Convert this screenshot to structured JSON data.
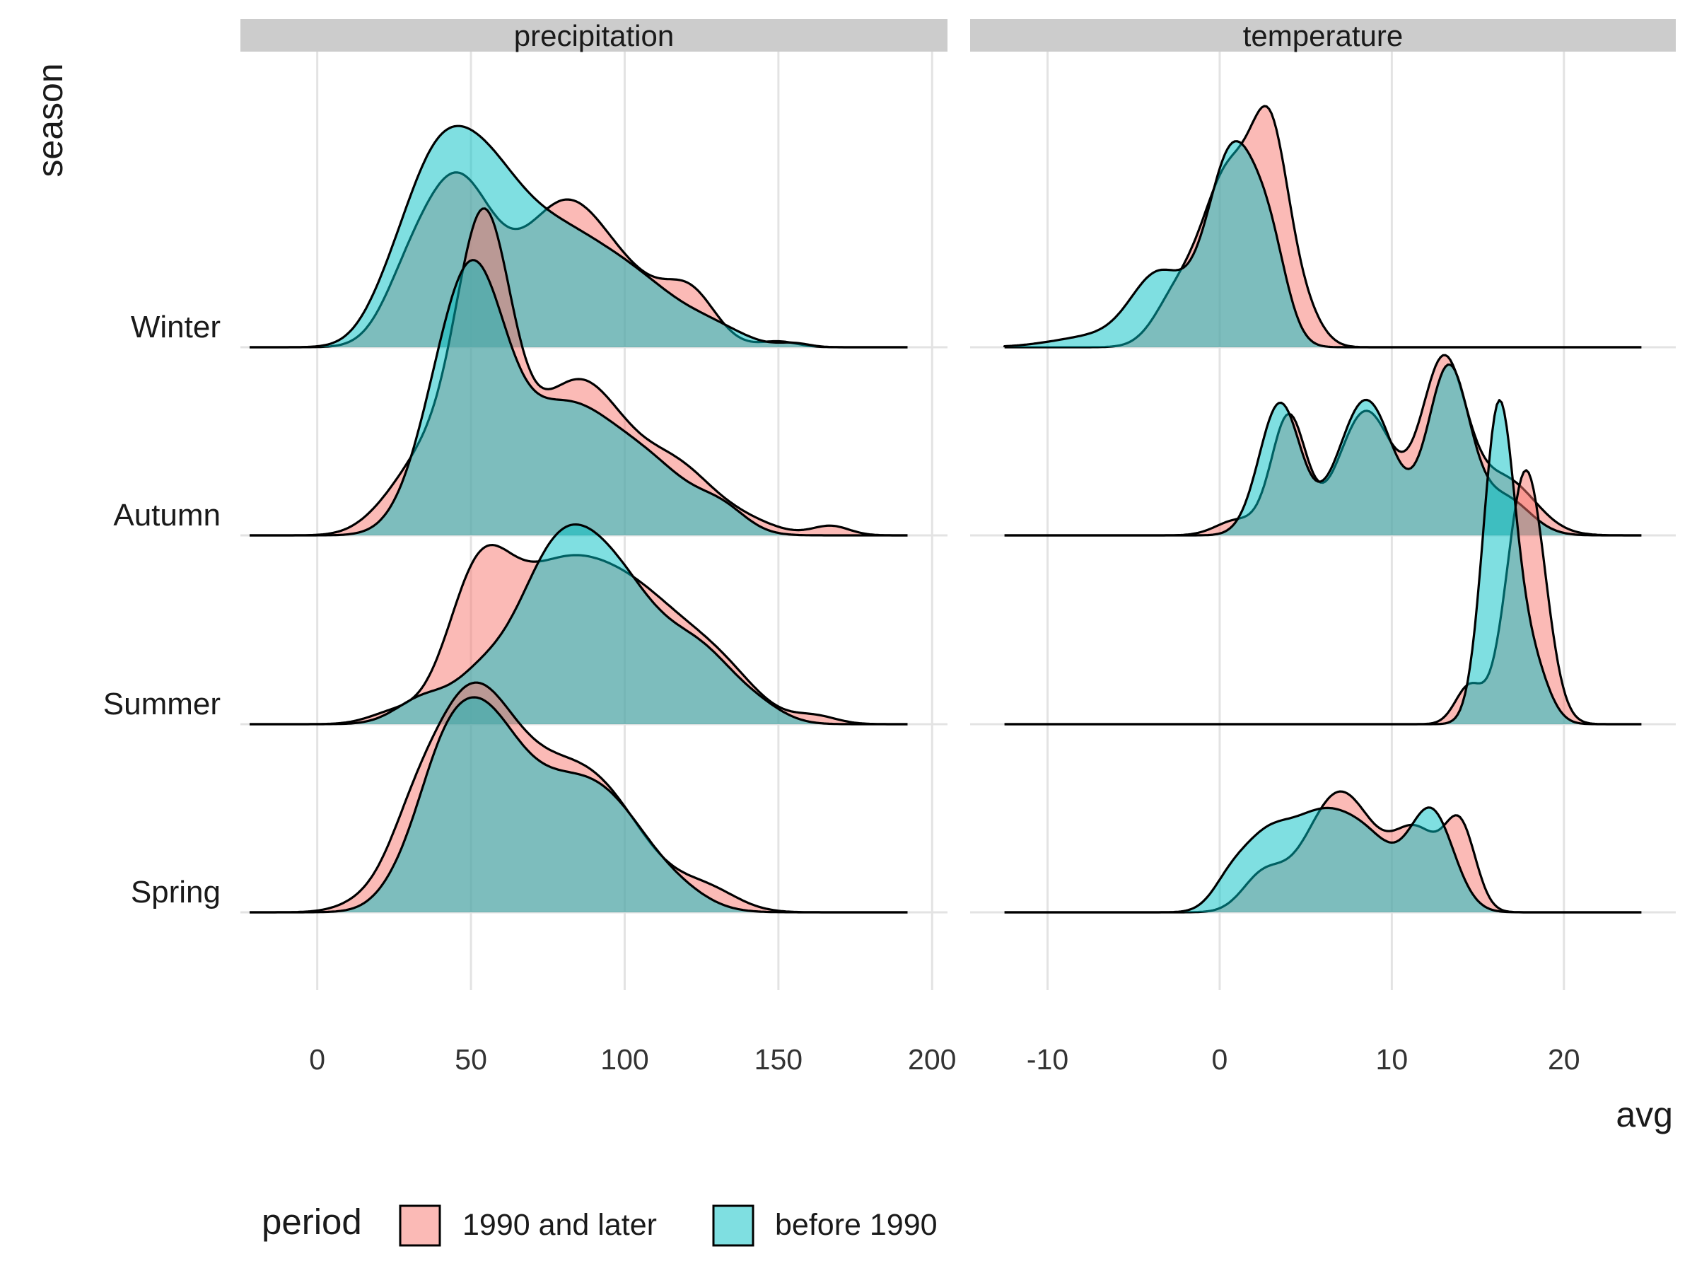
{
  "chart_data": {
    "type": "ridgeline",
    "xlabel": "avg",
    "ylabel": "season",
    "legend": {
      "title": "period",
      "position": "bottom-left",
      "entries": [
        {
          "label": "1990 and later",
          "color": "#F8766D"
        },
        {
          "label": "before 1990",
          "color": "#00BFC4"
        }
      ]
    },
    "categories": [
      "Spring",
      "Summer",
      "Autumn",
      "Winter"
    ],
    "grid": true,
    "panels": [
      {
        "title": "precipitation",
        "xlim": [
          -25,
          205
        ],
        "xticks": [
          0,
          50,
          100,
          150,
          200
        ],
        "tick_labels": [
          "0",
          "50",
          "100",
          "150",
          "200"
        ],
        "ridges": [
          {
            "category": "Spring",
            "series": "1990 and later",
            "range": [
              -22,
              192
            ],
            "peaks": [
              [
                15,
                0.035,
                8
              ],
              [
                30,
                0.18,
                8
              ],
              [
                48,
                0.94,
                14
              ],
              [
                75,
                0.6,
                20
              ],
              [
                95,
                0.3,
                15
              ],
              [
                127,
                0.105,
                10
              ]
            ]
          },
          {
            "category": "Spring",
            "series": "before 1990",
            "range": [
              -22,
              192
            ],
            "peaks": [
              [
                25,
                0.05,
                7
              ],
              [
                38,
                0.2,
                8
              ],
              [
                50,
                0.88,
                13
              ],
              [
                78,
                0.58,
                19
              ],
              [
                98,
                0.26,
                14
              ],
              [
                120,
                0.04,
                9
              ]
            ]
          },
          {
            "category": "Summer",
            "series": "1990 and later",
            "range": [
              -22,
              192
            ],
            "peaks": [
              [
                25,
                0.06,
                8
              ],
              [
                52,
                0.62,
                10
              ],
              [
                75,
                0.68,
                17
              ],
              [
                105,
                0.6,
                18
              ],
              [
                132,
                0.18,
                12
              ],
              [
                162,
                0.04,
                7
              ]
            ]
          },
          {
            "category": "Summer",
            "series": "before 1990",
            "range": [
              -22,
              192
            ],
            "peaks": [
              [
                35,
                0.14,
                9
              ],
              [
                52,
                0.15,
                8
              ],
              [
                78,
                0.88,
                14
              ],
              [
                100,
                0.55,
                13
              ],
              [
                125,
                0.35,
                12
              ],
              [
                145,
                0.05,
                8
              ]
            ]
          },
          {
            "category": "Autumn",
            "series": "1990 and later",
            "range": [
              -22,
              192
            ],
            "peaks": [
              [
                20,
                0.05,
                8
              ],
              [
                35,
                0.38,
                10
              ],
              [
                54,
                1.55,
                9
              ],
              [
                85,
                0.82,
                16
              ],
              [
                118,
                0.3,
                12
              ],
              [
                140,
                0.06,
                10
              ],
              [
                167,
                0.05,
                6
              ]
            ]
          },
          {
            "category": "Autumn",
            "series": "before 1990",
            "range": [
              -22,
              192
            ],
            "peaks": [
              [
                40,
                0.48,
                10
              ],
              [
                52,
                1.05,
                10
              ],
              [
                80,
                0.67,
                17
              ],
              [
                110,
                0.28,
                14
              ],
              [
                132,
                0.1,
                8
              ]
            ]
          },
          {
            "category": "Winter",
            "series": "1990 and later",
            "range": [
              -22,
              192
            ],
            "peaks": [
              [
                28,
                0.17,
                8
              ],
              [
                45,
                0.88,
                12
              ],
              [
                80,
                0.72,
                14
              ],
              [
                105,
                0.25,
                14
              ],
              [
                122,
                0.2,
                8
              ],
              [
                150,
                0.03,
                6
              ]
            ]
          },
          {
            "category": "Winter",
            "series": "before 1990",
            "range": [
              -22,
              192
            ],
            "peaks": [
              [
                22,
                0.12,
                8
              ],
              [
                35,
                0.44,
                10
              ],
              [
                50,
                0.9,
                14
              ],
              [
                78,
                0.52,
                16
              ],
              [
                105,
                0.28,
                15
              ],
              [
                130,
                0.07,
                10
              ],
              [
                155,
                0.02,
                5
              ]
            ]
          }
        ]
      },
      {
        "title": "temperature",
        "xlim": [
          -14.5,
          26.5
        ],
        "xticks": [
          -10,
          0,
          10,
          20
        ],
        "tick_labels": [
          "-10",
          "0",
          "10",
          "20"
        ],
        "ridges": [
          {
            "category": "Spring",
            "series": "1990 and later",
            "range": [
              -12.5,
              24.5
            ],
            "peaks": [
              [
                2.5,
                0.18,
                1.2
              ],
              [
                7,
                0.64,
                2
              ],
              [
                11.5,
                0.4,
                1.4
              ],
              [
                14,
                0.42,
                0.9
              ]
            ]
          },
          {
            "category": "Spring",
            "series": "before 1990",
            "range": [
              -12.5,
              24.5
            ],
            "peaks": [
              [
                0.5,
                0.1,
                1
              ],
              [
                2.5,
                0.32,
                1.5
              ],
              [
                6,
                0.5,
                2
              ],
              [
                9,
                0.24,
                1.5
              ],
              [
                12.3,
                0.53,
                1.3
              ]
            ]
          },
          {
            "category": "Summer",
            "series": "1990 and later",
            "range": [
              -12.5,
              24.5
            ],
            "peaks": [
              [
                14.5,
                0.2,
                0.8
              ],
              [
                17.8,
                1.35,
                1.1
              ]
            ]
          },
          {
            "category": "Summer",
            "series": "before 1990",
            "range": [
              -12.5,
              24.5
            ],
            "peaks": [
              [
                16.2,
                1.65,
                0.9
              ],
              [
                18,
                0.35,
                1
              ]
            ]
          },
          {
            "category": "Autumn",
            "series": "1990 and later",
            "range": [
              -12.5,
              24.5
            ],
            "peaks": [
              [
                1,
                0.08,
                1.2
              ],
              [
                4,
                0.63,
                1
              ],
              [
                8.5,
                0.66,
                1.6
              ],
              [
                13,
                0.9,
                1.3
              ],
              [
                16.5,
                0.3,
                1.8
              ]
            ]
          },
          {
            "category": "Autumn",
            "series": "before 1990",
            "range": [
              -12.5,
              24.5
            ],
            "peaks": [
              [
                3.5,
                0.7,
                1.2
              ],
              [
                8.5,
                0.72,
                1.6
              ],
              [
                13.3,
                0.88,
                1.2
              ],
              [
                16.5,
                0.2,
                1.5
              ]
            ]
          },
          {
            "category": "Winter",
            "series": "1990 and later",
            "range": [
              -12.5,
              24.5
            ],
            "peaks": [
              [
                -2.5,
                0.25,
                1.3
              ],
              [
                0.5,
                0.9,
                1.5
              ],
              [
                3,
                1.0,
                1.1
              ],
              [
                5,
                0.15,
                1
              ]
            ]
          },
          {
            "category": "Winter",
            "series": "before 1990",
            "range": [
              -12.5,
              24.5
            ],
            "peaks": [
              [
                -7,
                0.06,
                2.5
              ],
              [
                -3.5,
                0.37,
                1.6
              ],
              [
                0.8,
                1.05,
                1.5
              ],
              [
                3,
                0.35,
                1
              ]
            ]
          }
        ]
      }
    ]
  },
  "colors": {
    "series_1990": "#F8766D",
    "series_before": "#00BFC4",
    "strip": "#cccccc"
  }
}
